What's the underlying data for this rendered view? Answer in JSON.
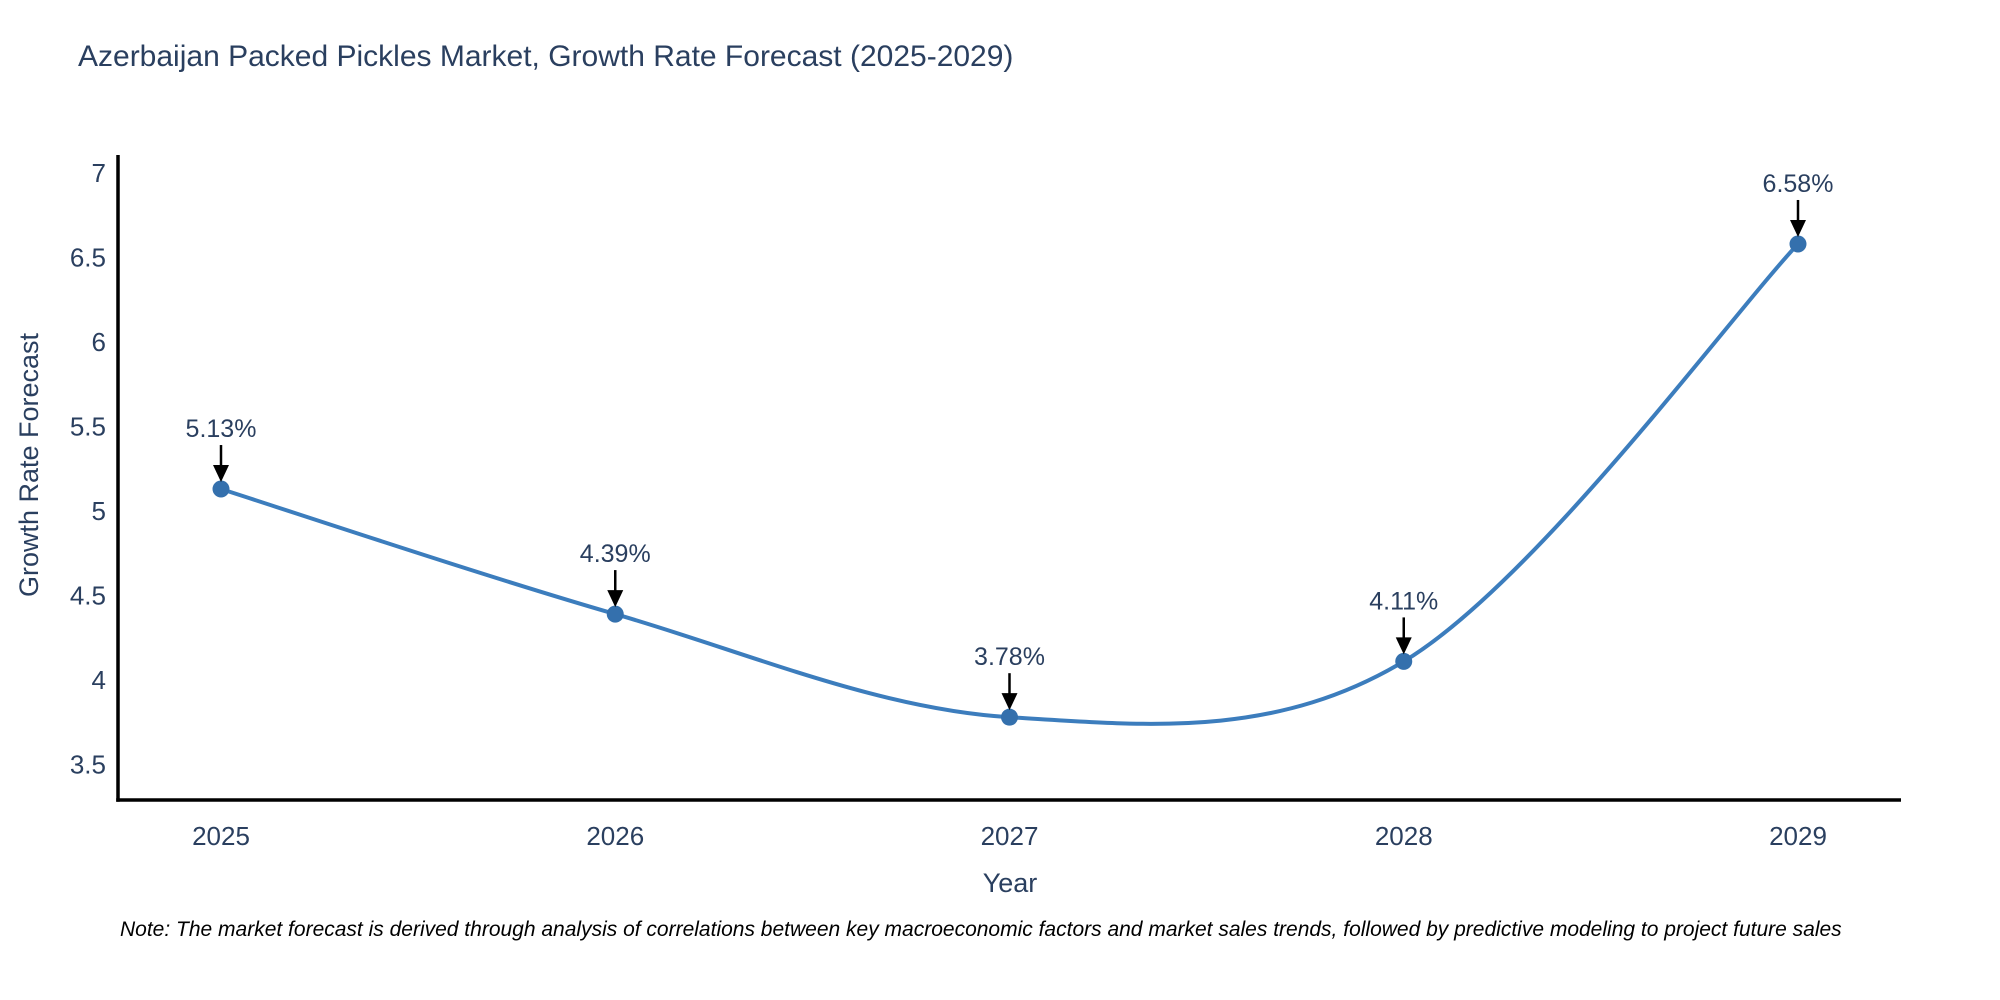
{
  "title": "Azerbaijan Packed Pickles Market, Growth Rate Forecast (2025-2029)",
  "note": "Note: The market forecast is derived through analysis of correlations between key macroeconomic factors and market sales trends, followed by predictive modeling to project future sales",
  "chart_data": {
    "type": "line",
    "line_shape": "spline",
    "x": [
      2025,
      2026,
      2027,
      2028,
      2029
    ],
    "series": [
      {
        "name": "Growth Rate Forecast",
        "values": [
          5.13,
          4.39,
          3.78,
          4.11,
          6.58
        ],
        "point_labels": [
          "5.13%",
          "4.39%",
          "3.78%",
          "4.11%",
          "6.58%"
        ]
      }
    ],
    "xlabel": "Year",
    "ylabel": "Growth Rate Forecast",
    "yticks": [
      3.5,
      4,
      4.5,
      5,
      5.5,
      6,
      6.5,
      7
    ],
    "ylim": [
      3.3,
      7.15
    ],
    "grid": false,
    "legend": "none",
    "annotation_arrows": true,
    "colors": {
      "line": "#3c7dbd",
      "marker": "#3470ad",
      "axis_line": "#000000",
      "text": "#2a3f5f",
      "arrow": "#000000",
      "note_text": "#000000",
      "background": "#ffffff"
    }
  }
}
